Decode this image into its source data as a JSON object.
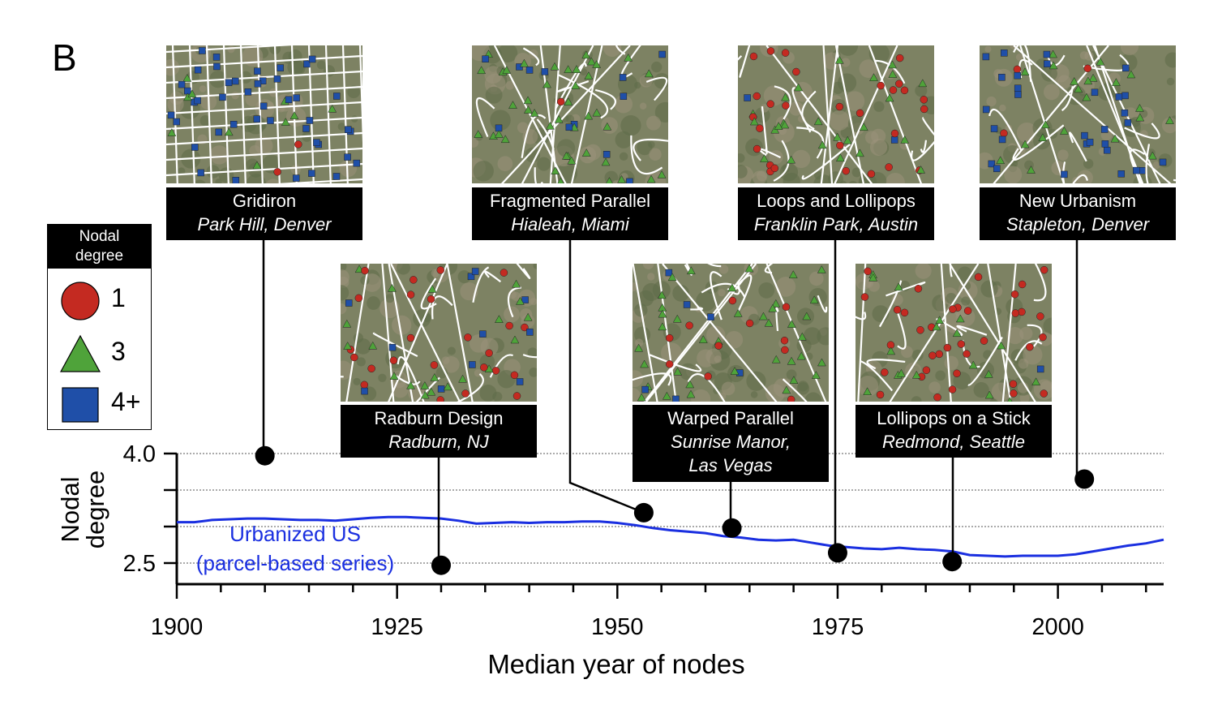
{
  "panel_letter": "B",
  "legend": {
    "title_line1": "Nodal",
    "title_line2": "degree",
    "items": [
      {
        "label": "1",
        "shape": "circle",
        "color": "#c42a21"
      },
      {
        "label": "3",
        "shape": "triangle",
        "color": "#4fa33a"
      },
      {
        "label": "4+",
        "shape": "square",
        "color": "#1f4fa8"
      }
    ]
  },
  "thumbnails": [
    {
      "name": "Gridiron",
      "place": "Park Hill, Denver",
      "year": 1910,
      "degree": 3.97
    },
    {
      "name": "Radburn Design",
      "place": "Radburn, NJ",
      "year": 1930,
      "degree": 2.47
    },
    {
      "name": "Fragmented Parallel",
      "place": "Hialeah, Miami",
      "year": 1953,
      "degree": 3.19
    },
    {
      "name": "Warped Parallel",
      "place": "Sunrise Manor,",
      "place2": "Las Vegas",
      "year": 1963,
      "degree": 2.98
    },
    {
      "name": "Loops and Lollipops",
      "place": "Franklin Park, Austin",
      "year": 1975,
      "degree": 2.64
    },
    {
      "name": "Lollipops on a Stick",
      "place": "Redmond, Seattle",
      "year": 1988,
      "degree": 2.52
    },
    {
      "name": "New Urbanism",
      "place": "Stapleton, Denver",
      "year": 2003,
      "degree": 3.65
    }
  ],
  "colors": {
    "series": "#1a2fe0",
    "circle": "#c42a21",
    "triangle": "#4fa33a",
    "square": "#1f4fa8",
    "road": "#ffffff",
    "map": "#7d8263"
  },
  "chart_data": {
    "type": "line",
    "xlabel": "Median year of nodes",
    "ylabel_line1": "Nodal",
    "ylabel_line2": "degree",
    "xlim": [
      1900,
      2012
    ],
    "ylim": [
      2.25,
      4.0
    ],
    "xticks": [
      "1900",
      "1925",
      "1950",
      "1975",
      "2000"
    ],
    "yticks": [
      "4.0",
      "2.5"
    ],
    "ytick_values": [
      4.0,
      2.5
    ],
    "gridlines_y": [
      4.0,
      3.5,
      3.0,
      2.5
    ],
    "series": [
      {
        "name": "Urbanized US",
        "name_line2": "(parcel-based series)",
        "x": [
          1900,
          1902,
          1904,
          1906,
          1908,
          1910,
          1912,
          1914,
          1916,
          1918,
          1920,
          1922,
          1924,
          1926,
          1928,
          1930,
          1932,
          1934,
          1936,
          1938,
          1940,
          1942,
          1944,
          1946,
          1948,
          1950,
          1952,
          1954,
          1956,
          1958,
          1960,
          1962,
          1964,
          1966,
          1968,
          1970,
          1972,
          1974,
          1976,
          1978,
          1980,
          1982,
          1984,
          1986,
          1988,
          1990,
          1992,
          1994,
          1996,
          1998,
          2000,
          2002,
          2004,
          2006,
          2008,
          2010,
          2012
        ],
        "y": [
          3.06,
          3.06,
          3.09,
          3.1,
          3.11,
          3.11,
          3.1,
          3.09,
          3.09,
          3.08,
          3.1,
          3.12,
          3.13,
          3.13,
          3.12,
          3.11,
          3.08,
          3.04,
          3.05,
          3.06,
          3.05,
          3.06,
          3.06,
          3.07,
          3.07,
          3.05,
          3.02,
          2.98,
          2.95,
          2.93,
          2.91,
          2.87,
          2.85,
          2.82,
          2.81,
          2.82,
          2.78,
          2.74,
          2.72,
          2.7,
          2.69,
          2.71,
          2.69,
          2.68,
          2.66,
          2.61,
          2.6,
          2.59,
          2.6,
          2.6,
          2.6,
          2.62,
          2.66,
          2.7,
          2.74,
          2.77,
          2.82
        ]
      }
    ]
  }
}
